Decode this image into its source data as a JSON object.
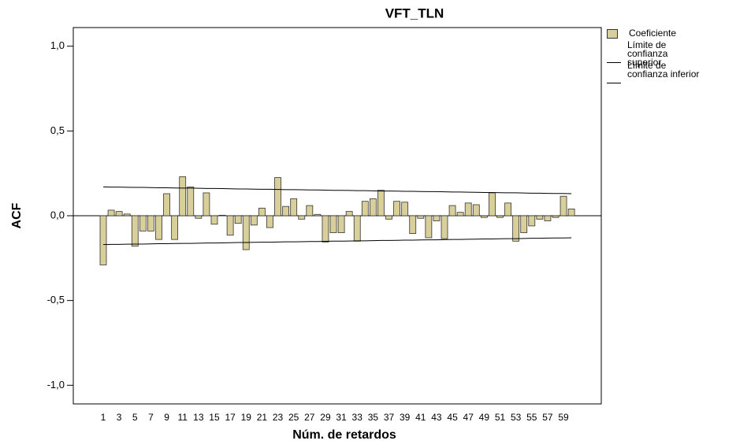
{
  "chart_data": {
    "type": "bar",
    "title": "VFT_TLN",
    "x_label": "Núm. de retardos",
    "y_label": "ACF",
    "categories": [
      1,
      null,
      3,
      null,
      5,
      null,
      7,
      null,
      9,
      null,
      11,
      null,
      13,
      null,
      15,
      null,
      17,
      null,
      19,
      null,
      21,
      null,
      23,
      null,
      25,
      null,
      27,
      null,
      29,
      null,
      31,
      null,
      33,
      null,
      35,
      null,
      37,
      null,
      39,
      null,
      41,
      null,
      43,
      null,
      45,
      null,
      47,
      null,
      49,
      null,
      51,
      null,
      53,
      null,
      55,
      null,
      57,
      null,
      59,
      null
    ],
    "series": [
      {
        "name": "Coeficiente",
        "type": "bar",
        "color": "#d8cf9b",
        "values": [
          -0.29,
          0.033,
          0.025,
          0.01,
          -0.18,
          -0.09,
          -0.09,
          -0.14,
          0.13,
          -0.14,
          0.23,
          0.17,
          -0.015,
          0.135,
          -0.05,
          0.003,
          -0.115,
          -0.045,
          -0.2,
          -0.055,
          0.045,
          -0.07,
          0.225,
          0.055,
          0.1,
          -0.02,
          0.06,
          0.008,
          -0.155,
          -0.1,
          -0.1,
          0.025,
          -0.15,
          0.085,
          0.1,
          0.15,
          -0.02,
          0.085,
          0.08,
          -0.105,
          -0.015,
          -0.13,
          -0.03,
          -0.135,
          0.06,
          0.02,
          0.075,
          0.065,
          -0.01,
          0.135,
          -0.01,
          0.075,
          -0.15,
          -0.1,
          -0.06,
          -0.02,
          -0.03,
          -0.01,
          0.115,
          0.04
        ]
      },
      {
        "name": "Límite de confianza superior",
        "type": "line",
        "color": "#000000",
        "values": [
          0.17,
          0.169,
          0.169,
          0.168,
          0.167,
          0.167,
          0.166,
          0.165,
          0.165,
          0.164,
          0.163,
          0.163,
          0.162,
          0.161,
          0.161,
          0.16,
          0.159,
          0.158,
          0.158,
          0.157,
          0.156,
          0.156,
          0.155,
          0.154,
          0.154,
          0.153,
          0.152,
          0.152,
          0.151,
          0.15,
          0.15,
          0.149,
          0.148,
          0.148,
          0.147,
          0.146,
          0.146,
          0.145,
          0.144,
          0.144,
          0.143,
          0.142,
          0.142,
          0.141,
          0.14,
          0.14,
          0.139,
          0.138,
          0.137,
          0.137,
          0.136,
          0.135,
          0.135,
          0.134,
          0.133,
          0.133,
          0.132,
          0.131,
          0.131,
          0.13
        ]
      },
      {
        "name": "Límite de confianza inferior",
        "type": "line",
        "color": "#000000",
        "values": [
          -0.17,
          -0.169,
          -0.169,
          -0.168,
          -0.167,
          -0.167,
          -0.166,
          -0.165,
          -0.165,
          -0.164,
          -0.163,
          -0.163,
          -0.162,
          -0.161,
          -0.161,
          -0.16,
          -0.159,
          -0.158,
          -0.158,
          -0.157,
          -0.156,
          -0.156,
          -0.155,
          -0.154,
          -0.154,
          -0.153,
          -0.152,
          -0.152,
          -0.151,
          -0.15,
          -0.15,
          -0.149,
          -0.148,
          -0.148,
          -0.147,
          -0.146,
          -0.146,
          -0.145,
          -0.144,
          -0.144,
          -0.143,
          -0.142,
          -0.142,
          -0.141,
          -0.14,
          -0.14,
          -0.139,
          -0.138,
          -0.137,
          -0.137,
          -0.136,
          -0.135,
          -0.135,
          -0.134,
          -0.133,
          -0.133,
          -0.132,
          -0.131,
          -0.131,
          -0.13
        ]
      }
    ],
    "ylim": [
      -1.11,
      1.11
    ],
    "yticks": [
      {
        "value": -1,
        "label": "-1,0"
      },
      {
        "value": -0.5,
        "label": "-0,5"
      },
      {
        "value": 0,
        "label": "0,0"
      },
      {
        "value": 0.5,
        "label": "0,5"
      },
      {
        "value": 1,
        "label": "1,0"
      }
    ]
  }
}
